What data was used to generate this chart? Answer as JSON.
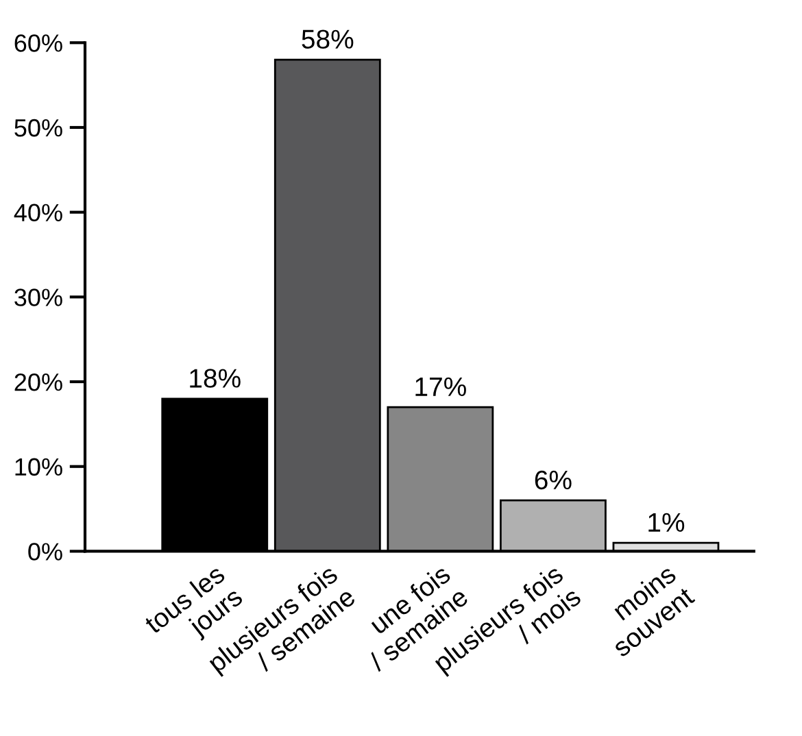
{
  "chart_data": {
    "type": "bar",
    "categories": [
      "tous les\njours",
      "plusieurs fois\n/ semaine",
      "une fois\n/ semaine",
      "plusieurs fois\n/ mois",
      "moins\nsouvent"
    ],
    "values": [
      18,
      58,
      17,
      6,
      1
    ],
    "colors": [
      "#000000",
      "#58585a",
      "#868686",
      "#b0b0b0",
      "#e0e0e0"
    ],
    "value_labels": [
      "18%",
      "58%",
      "17%",
      "6%",
      "1%"
    ],
    "ylim": [
      0,
      60
    ],
    "yticks": [
      {
        "value": 0,
        "label": "0%"
      },
      {
        "value": 10,
        "label": "10%"
      },
      {
        "value": 20,
        "label": "20%"
      },
      {
        "value": 30,
        "label": "30%"
      },
      {
        "value": 40,
        "label": "40%"
      },
      {
        "value": 50,
        "label": "50%"
      },
      {
        "value": 60,
        "label": "60%"
      }
    ],
    "grid": false,
    "legend": false
  }
}
